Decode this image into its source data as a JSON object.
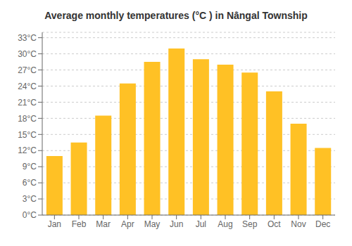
{
  "chart_data": {
    "type": "bar",
    "title": "Average monthly temperatures (°C ) in Nā̇ngal Township",
    "categories": [
      "Jan",
      "Feb",
      "Mar",
      "Apr",
      "May",
      "Jun",
      "Jul",
      "Aug",
      "Sep",
      "Oct",
      "Nov",
      "Dec"
    ],
    "values": [
      11.0,
      13.5,
      18.5,
      24.5,
      28.5,
      31.0,
      29.0,
      28.0,
      26.5,
      23.0,
      17.0,
      12.5
    ],
    "color": "#FFC125",
    "ylim": [
      0,
      34
    ],
    "yticks": [
      {
        "value": 0,
        "label": "0°C"
      },
      {
        "value": 3,
        "label": "3°C"
      },
      {
        "value": 6,
        "label": "6°C"
      },
      {
        "value": 9,
        "label": "9°C"
      },
      {
        "value": 12,
        "label": "12°C"
      },
      {
        "value": 15,
        "label": "15°C"
      },
      {
        "value": 18,
        "label": "18°C"
      },
      {
        "value": 21,
        "label": "21°C"
      },
      {
        "value": 24,
        "label": "24°C"
      },
      {
        "value": 27,
        "label": "27°C"
      },
      {
        "value": 30,
        "label": "30°C"
      },
      {
        "value": 33,
        "label": "33°C"
      }
    ],
    "grid": true
  }
}
